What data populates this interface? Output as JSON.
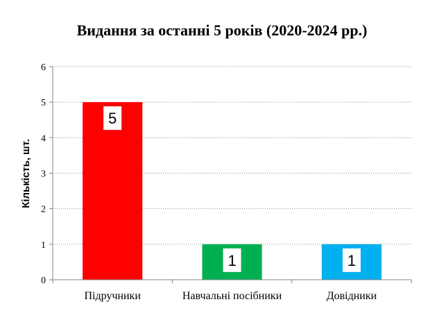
{
  "chart_data": {
    "type": "bar",
    "title": "Видання за останні 5 років (2020-2024 рр.)",
    "xlabel": "",
    "ylabel": "Кількість, шт.",
    "categories": [
      "Підручники",
      "Навчальні посібники",
      "Довідники"
    ],
    "values": [
      5,
      1,
      1
    ],
    "colors": [
      "#ff0000",
      "#00b050",
      "#00b0f0"
    ],
    "ylim": [
      0,
      6
    ],
    "yticks": [
      0,
      1,
      2,
      3,
      4,
      5,
      6
    ],
    "grid": true,
    "data_labels": true,
    "legend": "none"
  }
}
